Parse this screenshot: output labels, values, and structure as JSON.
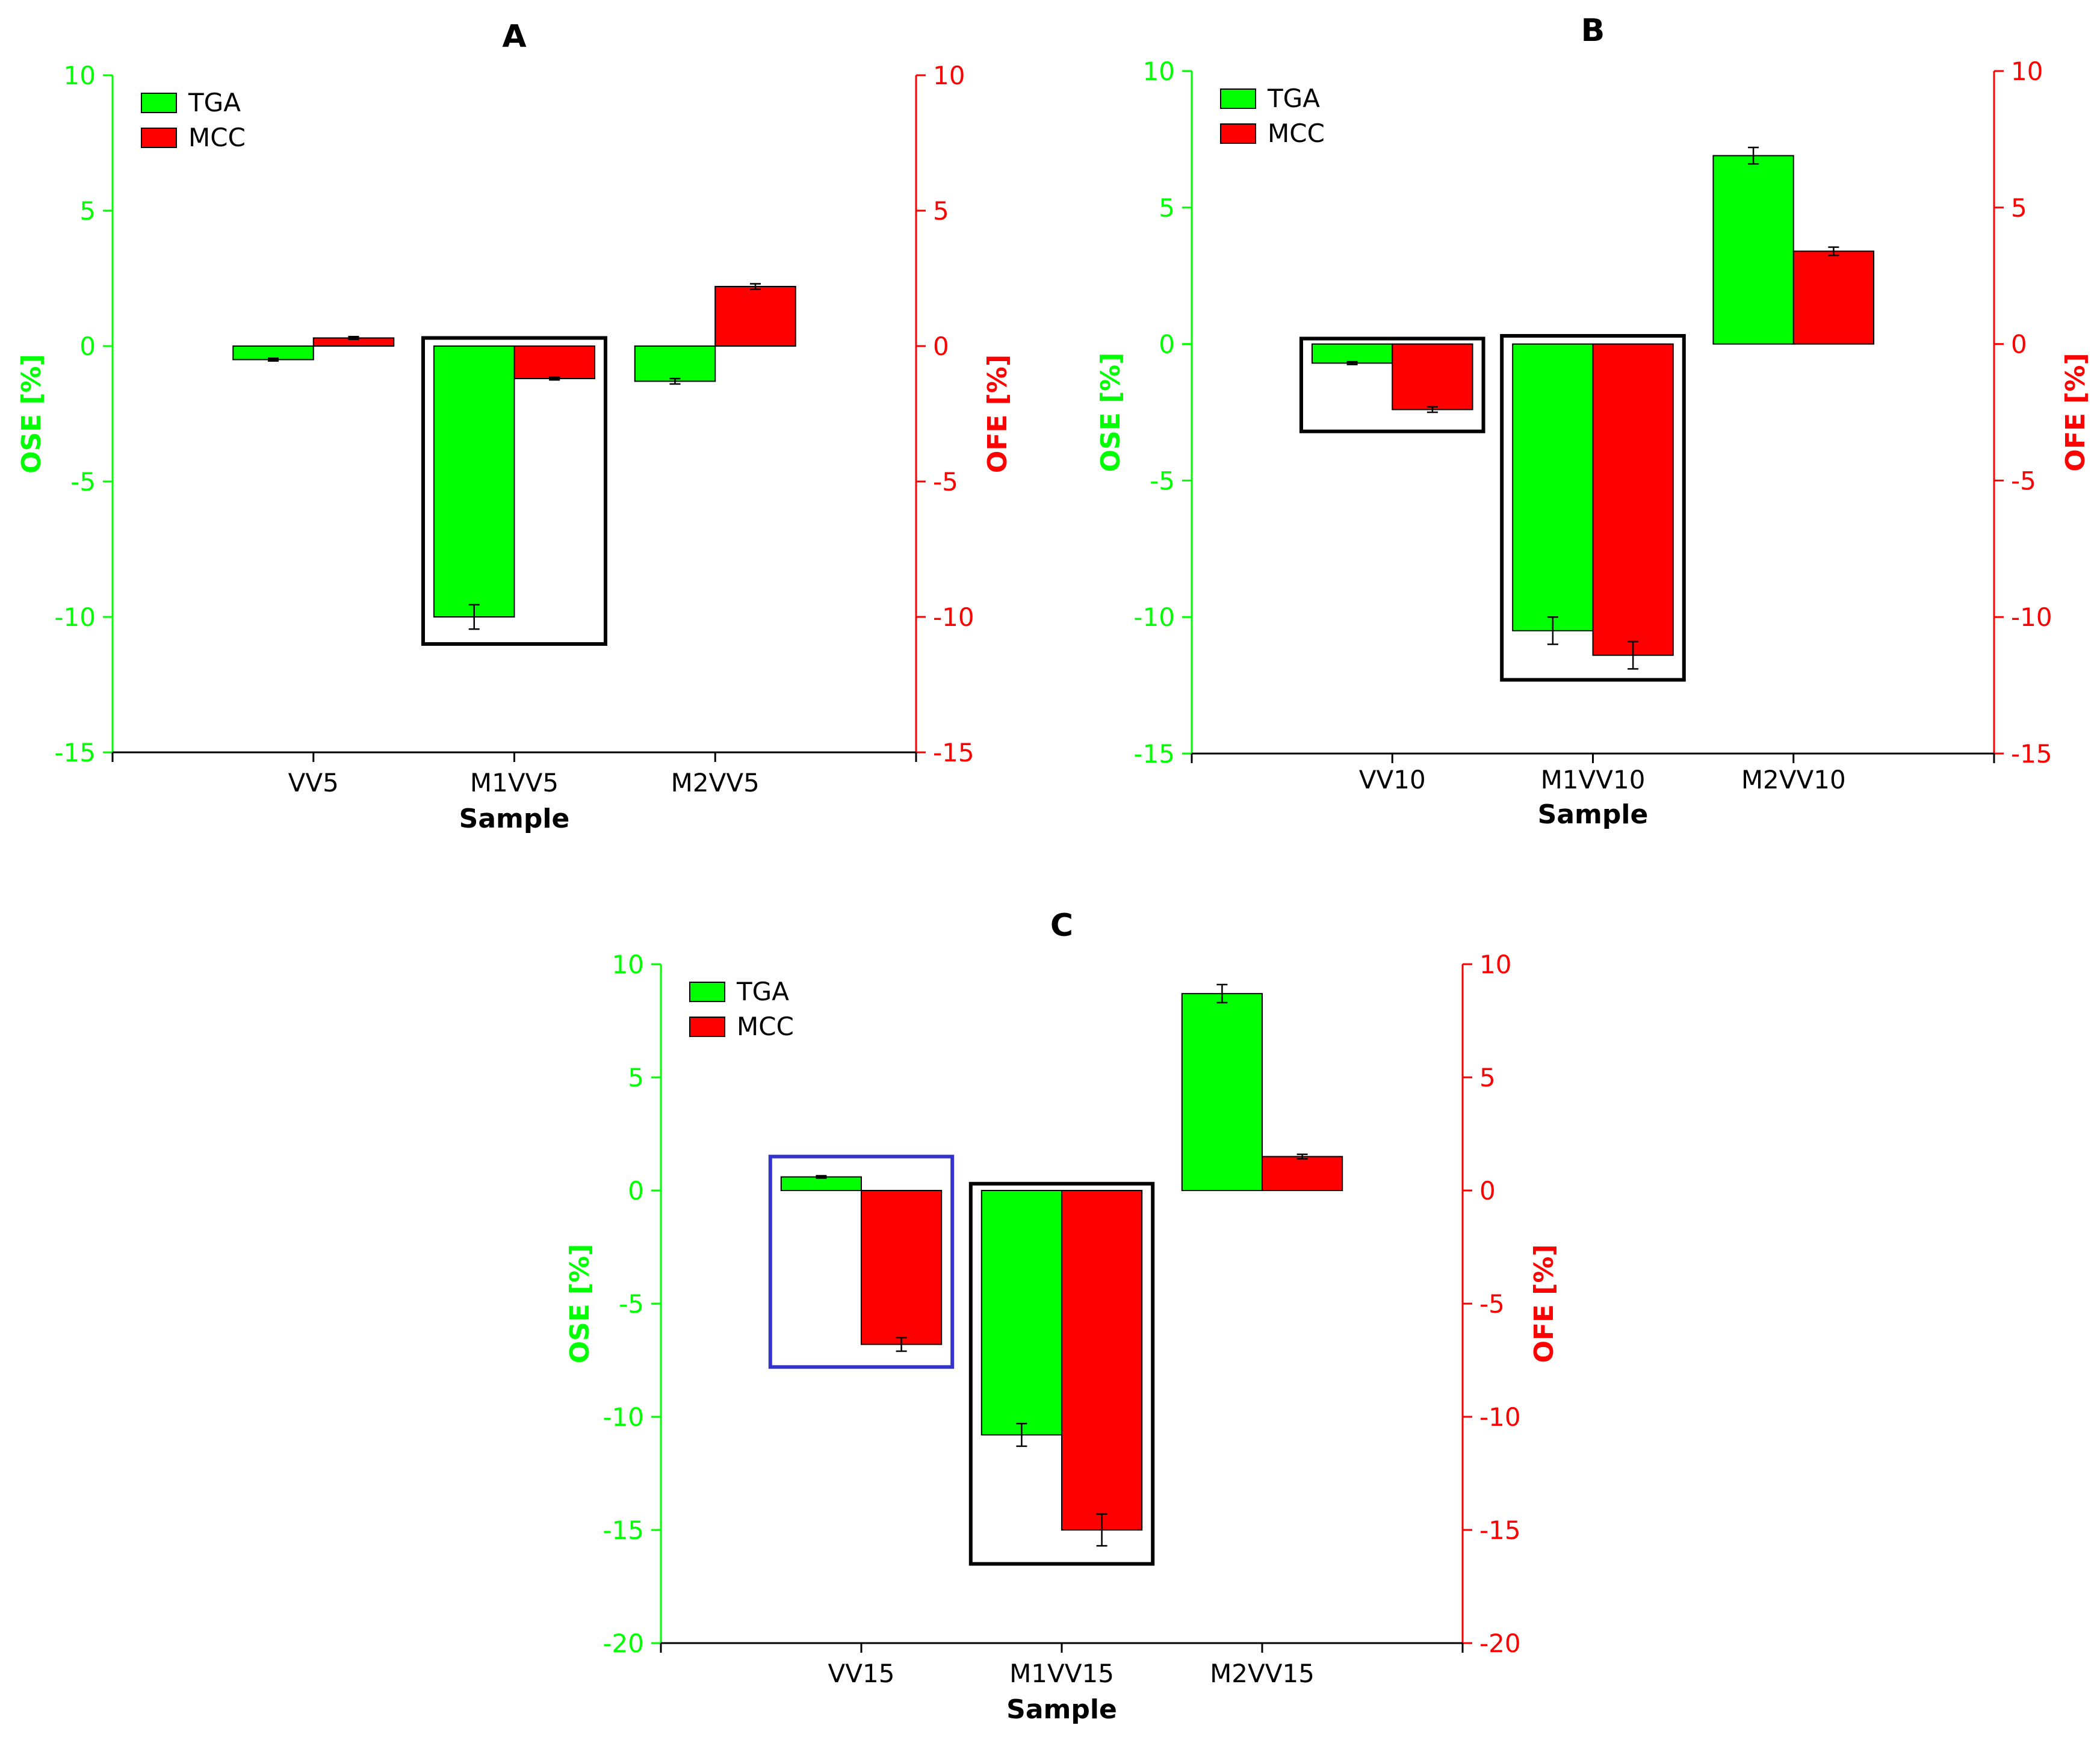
{
  "colors": {
    "tga": "#00ff00",
    "mcc": "#ff0000",
    "left_axis": "#00ff00",
    "right_axis": "#ff0000",
    "highlight_box": "#000000",
    "highlight_box_alt": "#3333cc",
    "text": "#000000"
  },
  "chart_data": [
    {
      "type": "bar",
      "title": "A",
      "xlabel": "Sample",
      "ylabel_left": "OSE [%]",
      "ylabel_right": "OFE [%]",
      "ylim": [
        -15,
        10
      ],
      "yticks": [
        10,
        5,
        0,
        -5,
        -10,
        -15
      ],
      "ytick_labels": [
        "10",
        "5",
        "0",
        "-5",
        "-10",
        "-15"
      ],
      "categories": [
        "VV5",
        "M1VV5",
        "M2VV5"
      ],
      "legend": [
        "TGA",
        "MCC"
      ],
      "legend_position": "top-left",
      "series": [
        {
          "name": "TGA",
          "axis": "left",
          "values": [
            -0.5,
            -10.0,
            -1.3
          ],
          "errors": [
            0.05,
            0.45,
            0.1
          ]
        },
        {
          "name": "MCC",
          "axis": "right",
          "values": [
            0.3,
            -1.2,
            2.2
          ],
          "errors": [
            0.05,
            0.05,
            0.1
          ]
        }
      ],
      "highlights": [
        {
          "category": "M1VV5",
          "y_range": [
            -11.0,
            0.3
          ],
          "color": "black"
        }
      ]
    },
    {
      "type": "bar",
      "title": "B",
      "xlabel": "Sample",
      "ylabel_left": "OSE [%]",
      "ylabel_right": "OFE [%]",
      "ylim": [
        -15,
        10
      ],
      "yticks": [
        10,
        5,
        0,
        -5,
        -10,
        -15
      ],
      "ytick_labels": [
        "10",
        "5",
        "0",
        "-5",
        "-10",
        "-15"
      ],
      "categories": [
        "VV10",
        "M1VV10",
        "M2VV10"
      ],
      "legend": [
        "TGA",
        "MCC"
      ],
      "legend_position": "top-left",
      "series": [
        {
          "name": "TGA",
          "axis": "left",
          "values": [
            -0.7,
            -10.5,
            6.9
          ],
          "errors": [
            0.05,
            0.5,
            0.3
          ]
        },
        {
          "name": "MCC",
          "axis": "right",
          "values": [
            -2.4,
            -11.4,
            3.4
          ],
          "errors": [
            0.1,
            0.5,
            0.15
          ]
        }
      ],
      "highlights": [
        {
          "category": "VV10",
          "y_range": [
            -3.2,
            0.2
          ],
          "color": "black"
        },
        {
          "category": "M1VV10",
          "y_range": [
            -12.3,
            0.3
          ],
          "color": "black"
        }
      ]
    },
    {
      "type": "bar",
      "title": "C",
      "xlabel": "Sample",
      "ylabel_left": "OSE [%]",
      "ylabel_right": "OFE [%]",
      "ylim": [
        -20,
        10
      ],
      "yticks": [
        10,
        5,
        0,
        -5,
        -10,
        -15,
        -20
      ],
      "ytick_labels": [
        "10",
        "5",
        "0",
        "-5",
        "-10",
        "-15",
        "-20"
      ],
      "categories": [
        "VV15",
        "M1VV15",
        "M2VV15"
      ],
      "legend": [
        "TGA",
        "MCC"
      ],
      "legend_position": "top-left",
      "series": [
        {
          "name": "TGA",
          "axis": "left",
          "values": [
            0.6,
            -10.8,
            8.7
          ],
          "errors": [
            0.05,
            0.5,
            0.4
          ]
        },
        {
          "name": "MCC",
          "axis": "right",
          "values": [
            -6.8,
            -15.0,
            1.5
          ],
          "errors": [
            0.3,
            0.7,
            0.1
          ]
        }
      ],
      "highlights": [
        {
          "category": "VV15",
          "y_range": [
            -7.8,
            1.5
          ],
          "color": "blue"
        },
        {
          "category": "M1VV15",
          "y_range": [
            -16.5,
            0.3
          ],
          "color": "black"
        }
      ]
    }
  ]
}
